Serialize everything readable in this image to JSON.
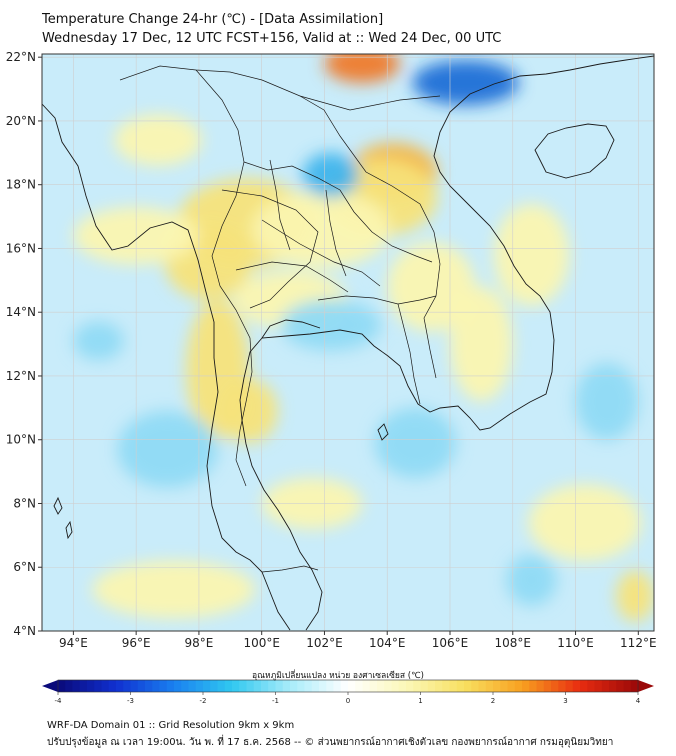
{
  "title_line1": "Temperature Change 24-hr (℃) - [Data Assimilation]",
  "title_line2": "Wednesday 17 Dec, 12 UTC FCST+156, Valid at :: Wed 24 Dec, 00 UTC",
  "lat_labels": [
    "22°N",
    "20°N",
    "18°N",
    "16°N",
    "14°N",
    "12°N",
    "10°N",
    "8°N",
    "6°N",
    "4°N"
  ],
  "lon_labels": [
    "94°E",
    "96°E",
    "98°E",
    "100°E",
    "102°E",
    "104°E",
    "106°E",
    "108°E",
    "110°E",
    "112°E"
  ],
  "colorbar": {
    "title": "อุณหภูมิเปลี่ยนแปลง หน่วย องศาเซลเซียส (℃)",
    "tick_labels": [
      "-4",
      "-3",
      "-2",
      "-1",
      "0",
      "1",
      "2",
      "3",
      "4"
    ],
    "range": [
      -4,
      4
    ],
    "colors": [
      "#0a0a7a",
      "#1030d0",
      "#1a80f0",
      "#30c8f0",
      "#a8ecfa",
      "#ffffff",
      "#fbf7b8",
      "#f8e060",
      "#f8a020",
      "#e82c10",
      "#9a0808"
    ]
  },
  "footer_line1": "WRF-DA Domain 01 :: Grid Resolution 9km x 9km",
  "footer_line2": "ปรับปรุงข้อมูล ณ เวลา 19:00น. วัน พ. ที่ 17 ธ.ค. 2568 -- © ส่วนพยากรณ์อากาศเชิงตัวเลข กองพยากรณ์อากาศ กรมอุตุนิยมวิทยา",
  "map_colors": {
    "background": "#c9ecfa",
    "warm_light": "#fbf5b0",
    "warm": "#f7e37a",
    "warm_strong": "#f4b542",
    "hot": "#ef7b2c",
    "cool": "#8fdaf4",
    "cold": "#3fb4ec",
    "very_cold": "#1f6fd6",
    "coast": "#1a1a1a",
    "grid": "#cfcfcf"
  }
}
